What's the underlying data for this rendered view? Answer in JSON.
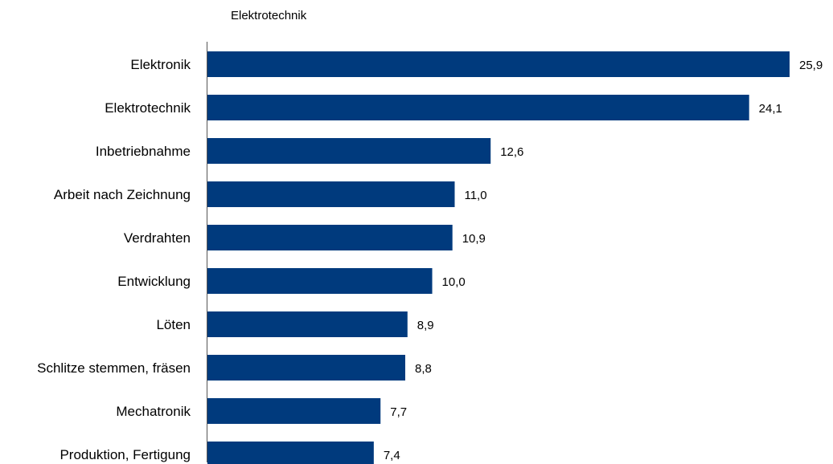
{
  "chart_data": {
    "type": "bar",
    "orientation": "horizontal",
    "title": "Elektrotechnik",
    "categories": [
      "Elektronik",
      "Elektrotechnik",
      "Inbetriebnahme",
      "Arbeit nach Zeichnung",
      "Verdrahten",
      "Entwicklung",
      "Löten",
      "Schlitze stemmen, fräsen",
      "Mechatronik",
      "Produktion, Fertigung"
    ],
    "values": [
      25.9,
      24.1,
      12.6,
      11.0,
      10.9,
      10.0,
      8.9,
      8.8,
      7.7,
      7.4
    ],
    "value_labels": [
      "25,9",
      "24,1",
      "12,6",
      "11,0",
      "10,9",
      "10,0",
      "8,9",
      "8,8",
      "7,7",
      "7,4"
    ],
    "xlim": [
      0,
      25.9
    ],
    "grid": false,
    "bar_color": "#003A7D"
  }
}
